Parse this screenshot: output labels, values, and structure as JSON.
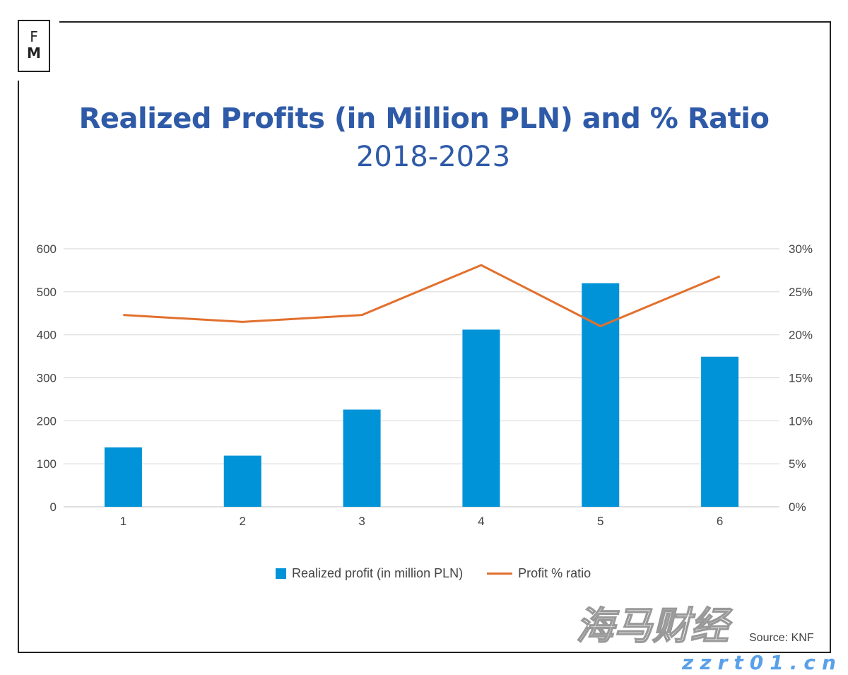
{
  "logo": {
    "line1": "F",
    "line2": "M"
  },
  "chart_data": {
    "type": "bar+line",
    "title": "Realized Profits (in Million PLN) and % Ratio",
    "subtitle": "2018-2023",
    "categories": [
      "1",
      "2",
      "3",
      "4",
      "5",
      "6"
    ],
    "series": [
      {
        "name": "Realized profit (in million PLN)",
        "type": "bar",
        "axis": "left",
        "color": "#0093d8",
        "values": [
          138,
          119,
          226,
          412,
          520,
          349
        ]
      },
      {
        "name": "Profit % ratio",
        "type": "line",
        "axis": "right",
        "color": "#e2702e",
        "values": [
          22.3,
          21.5,
          22.3,
          28.1,
          21.0,
          26.8
        ]
      }
    ],
    "ylim": [
      0,
      600
    ],
    "yticks": [
      "0",
      "100",
      "200",
      "300",
      "400",
      "500",
      "600"
    ],
    "y2lim": [
      0,
      30
    ],
    "y2ticks": [
      "0%",
      "5%",
      "10%",
      "15%",
      "20%",
      "25%",
      "30%"
    ],
    "grid": true,
    "legend": "bottom",
    "source": "Source: KNF"
  },
  "watermark": {
    "text": "海马财经",
    "url": "zzrt01.cn"
  }
}
